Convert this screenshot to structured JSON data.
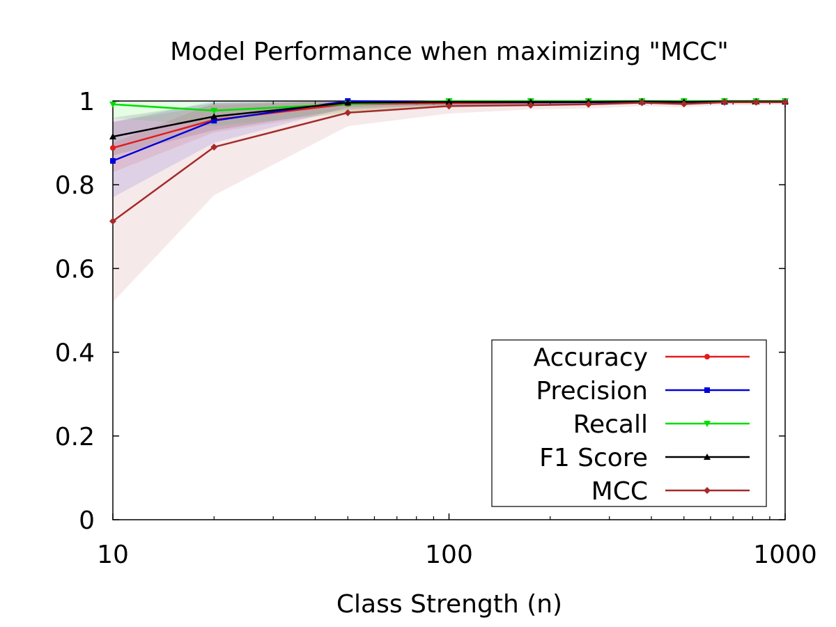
{
  "chart_data": {
    "type": "line",
    "title": "Model Performance when maximizing \"MCC\"",
    "xlabel": "Class Strength (n)",
    "ylabel": "",
    "xscale": "log",
    "xlim": [
      10,
      1000
    ],
    "ylim": [
      0,
      1
    ],
    "x_ticks": [
      "10",
      "100",
      "1000"
    ],
    "y_ticks": [
      "0",
      "0.2",
      "0.4",
      "0.6",
      "0.8",
      "1"
    ],
    "grid": false,
    "legend_position": "bottom-right",
    "x": [
      10,
      20,
      50,
      100,
      175,
      260,
      375,
      500,
      660,
      820,
      1000
    ],
    "series": [
      {
        "name": "Accuracy",
        "color": "#e41a1c",
        "marker": "circle",
        "values": [
          0.888,
          0.955,
          0.993,
          0.995,
          0.996,
          0.997,
          0.998,
          0.997,
          0.998,
          0.998,
          0.998
        ],
        "band_low": [
          0.83,
          0.925,
          0.975,
          0.985,
          0.99,
          0.99,
          0.993,
          0.99,
          0.994,
          0.994,
          0.995
        ],
        "band_high": [
          0.95,
          0.99,
          1.0,
          1.0,
          1.0,
          1.0,
          1.0,
          1.0,
          1.0,
          1.0,
          1.0
        ]
      },
      {
        "name": "Precision",
        "color": "#0000dd",
        "marker": "square",
        "values": [
          0.857,
          0.953,
          1.0,
          0.998,
          0.997,
          0.997,
          0.998,
          0.998,
          0.998,
          1.0,
          0.998
        ],
        "band_low": [
          0.77,
          0.9,
          0.985,
          0.99,
          0.99,
          0.99,
          0.993,
          0.992,
          0.994,
          0.996,
          0.995
        ],
        "band_high": [
          0.95,
          1.0,
          1.0,
          1.0,
          1.0,
          1.0,
          1.0,
          1.0,
          1.0,
          1.0,
          1.0
        ]
      },
      {
        "name": "Recall",
        "color": "#00dd00",
        "marker": "triangle-down",
        "values": [
          0.992,
          0.977,
          0.993,
          1.0,
          1.0,
          1.0,
          1.0,
          1.0,
          1.0,
          1.0,
          1.0
        ],
        "band_low": [
          0.96,
          0.94,
          0.97,
          0.99,
          0.99,
          0.99,
          0.995,
          0.995,
          0.995,
          0.995,
          0.995
        ],
        "band_high": [
          1.0,
          1.0,
          1.0,
          1.0,
          1.0,
          1.0,
          1.0,
          1.0,
          1.0,
          1.0,
          1.0
        ]
      },
      {
        "name": "F1 Score",
        "color": "#000000",
        "marker": "triangle-up",
        "values": [
          0.915,
          0.963,
          0.996,
          0.998,
          0.998,
          0.998,
          0.999,
          0.998,
          0.999,
          0.999,
          0.999
        ],
        "band_low": [
          0.87,
          0.93,
          0.98,
          0.99,
          0.99,
          0.99,
          0.995,
          0.993,
          0.995,
          0.995,
          0.996
        ],
        "band_high": [
          0.96,
          0.995,
          1.0,
          1.0,
          1.0,
          1.0,
          1.0,
          1.0,
          1.0,
          1.0,
          1.0
        ]
      },
      {
        "name": "MCC",
        "color": "#a52a2a",
        "marker": "diamond",
        "values": [
          0.713,
          0.89,
          0.972,
          0.988,
          0.99,
          0.992,
          0.996,
          0.993,
          0.997,
          0.997,
          0.997
        ],
        "band_low": [
          0.52,
          0.775,
          0.94,
          0.97,
          0.98,
          0.982,
          0.988,
          0.985,
          0.99,
          0.99,
          0.992
        ],
        "band_high": [
          0.9,
          0.995,
          1.0,
          1.0,
          1.0,
          1.0,
          1.0,
          1.0,
          1.0,
          1.0,
          1.0
        ]
      }
    ]
  }
}
